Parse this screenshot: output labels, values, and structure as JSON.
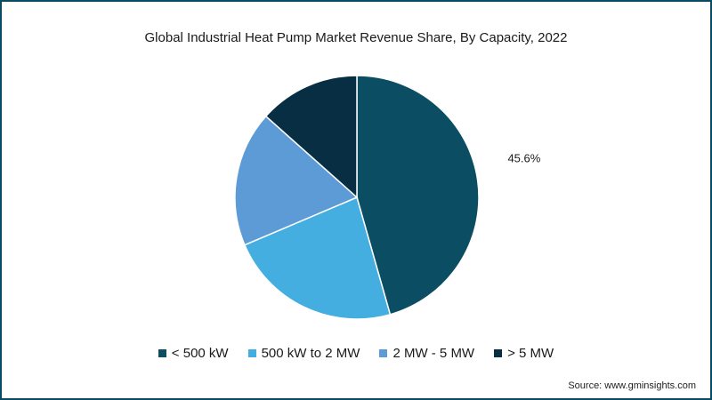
{
  "chart_data": {
    "type": "pie",
    "title": "Global Industrial Heat Pump Market Revenue Share, By Capacity, 2022",
    "slices": [
      {
        "label": "< 500 kW",
        "value": 45.6,
        "color": "#0b4d63",
        "data_label": "45.6%"
      },
      {
        "label": "500 kW to 2 MW",
        "value": 23.0,
        "color": "#45aee0",
        "data_label": ""
      },
      {
        "label": "2 MW - 5 MW",
        "value": 18.0,
        "color": "#5c9bd6",
        "data_label": ""
      },
      {
        "label": "> 5 MW",
        "value": 13.4,
        "color": "#072e43",
        "data_label": ""
      }
    ],
    "legend_position": "bottom"
  },
  "source": "Source: www.gminsights.com"
}
